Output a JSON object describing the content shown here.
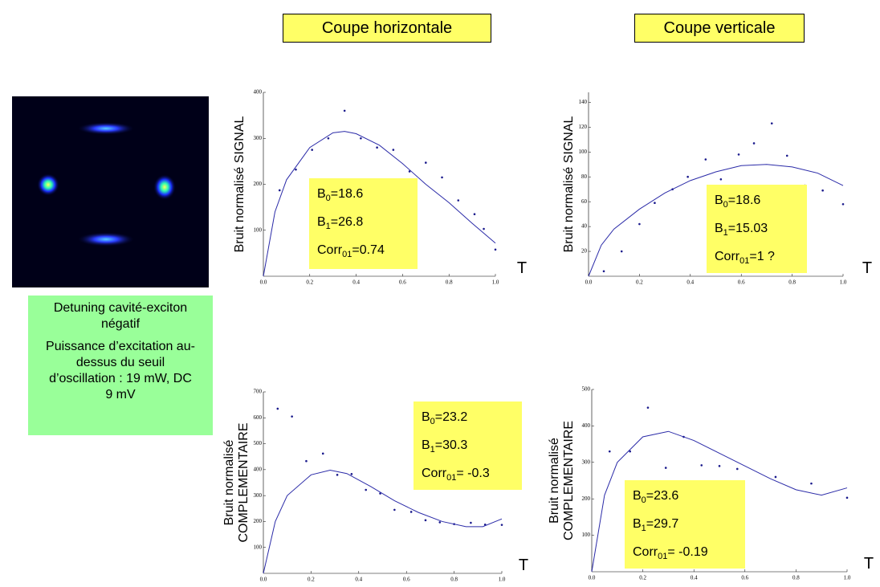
{
  "headers": [
    "Coupe horizontale",
    "Coupe verticale"
  ],
  "caption": {
    "paragraphs": [
      "Detuning cavité-exciton négatif",
      "Puissance d’excitation au-dessus du seuil d’oscillation : 19 mW, DC 9 mV"
    ]
  },
  "chart_data": [
    {
      "type": "scatter",
      "y_label": [
        "Bruit normalisé SIGNAL"
      ],
      "x_label": "T",
      "xlim": [
        0,
        1
      ],
      "ylim": [
        0,
        400
      ],
      "xticks": [
        {
          "value": 0,
          "label": "0.0"
        },
        {
          "value": 0.2,
          "label": "0.2"
        },
        {
          "value": 0.4,
          "label": "0.4"
        },
        {
          "value": 0.6,
          "label": "0.6"
        },
        {
          "value": 0.8,
          "label": "0.8"
        },
        {
          "value": 1,
          "label": "1.0"
        }
      ],
      "yticks": [
        100,
        200,
        300,
        400
      ],
      "series": [
        {
          "color": "#1a1a8c",
          "x": [
            0.07,
            0.14,
            0.21,
            0.28,
            0.35,
            0.42,
            0.49,
            0.56,
            0.63,
            0.7,
            0.77,
            0.84,
            0.91,
            0.95,
            1.0
          ],
          "values": [
            187,
            232,
            275,
            300,
            360,
            300,
            280,
            275,
            228,
            247,
            215,
            165,
            135,
            103,
            58
          ]
        },
        {
          "style": "line",
          "color": "#2b2ba8",
          "x": [
            0,
            0.05,
            0.1,
            0.2,
            0.3,
            0.35,
            0.4,
            0.5,
            0.6,
            0.7,
            0.8,
            0.9,
            1.0
          ],
          "values": [
            0,
            140,
            210,
            280,
            312,
            315,
            310,
            285,
            245,
            200,
            160,
            115,
            72
          ]
        }
      ],
      "annotations": [
        {
          "symbol": "B",
          "subscript": "0",
          "text": "=18.6"
        },
        {
          "symbol": "B",
          "subscript": "1",
          "text": "=26.8"
        },
        {
          "symbol": "Corr",
          "subscript": "01",
          "text": "=0.74"
        }
      ]
    },
    {
      "type": "scatter",
      "y_label": [
        "Bruit normalisé SIGNAL"
      ],
      "x_label": "T",
      "xlim": [
        0,
        1
      ],
      "ylim": [
        0,
        148
      ],
      "xticks": [
        {
          "value": 0,
          "label": "0.0"
        },
        {
          "value": 0.2,
          "label": "0.2"
        },
        {
          "value": 0.4,
          "label": "0.4"
        },
        {
          "value": 0.6,
          "label": "0.6"
        },
        {
          "value": 0.8,
          "label": "0.8"
        },
        {
          "value": 1,
          "label": "1.0"
        }
      ],
      "yticks": [
        20,
        40,
        60,
        80,
        100,
        120,
        140
      ],
      "series": [
        {
          "color": "#1a1a8c",
          "x": [
            0.06,
            0.13,
            0.2,
            0.26,
            0.33,
            0.39,
            0.46,
            0.52,
            0.59,
            0.65,
            0.72,
            0.78,
            0.85,
            0.92,
            1.0
          ],
          "values": [
            4,
            20,
            42,
            59,
            70,
            80,
            94,
            78,
            98,
            107,
            123,
            97,
            73,
            69,
            58
          ]
        },
        {
          "style": "line",
          "color": "#2b2ba8",
          "x": [
            0,
            0.05,
            0.1,
            0.2,
            0.3,
            0.4,
            0.5,
            0.6,
            0.7,
            0.8,
            0.9,
            1.0
          ],
          "values": [
            0,
            25,
            38,
            54,
            67,
            77,
            84,
            89,
            90,
            88,
            83,
            73
          ]
        }
      ],
      "annotations": [
        {
          "symbol": "B",
          "subscript": "0",
          "text": "=18.6"
        },
        {
          "symbol": "B",
          "subscript": "1",
          "text": "=15.03"
        },
        {
          "symbol": "Corr",
          "subscript": "01",
          "text": "=1 ?"
        }
      ]
    },
    {
      "type": "scatter",
      "y_label": [
        "Bruit normalisé",
        "COMPLEMENTAIRE"
      ],
      "x_label": "T",
      "xlim": [
        0,
        1
      ],
      "ylim": [
        0,
        700
      ],
      "xticks": [
        {
          "value": 0,
          "label": "0.0"
        },
        {
          "value": 0.2,
          "label": "0.2"
        },
        {
          "value": 0.4,
          "label": "0.4"
        },
        {
          "value": 0.6,
          "label": "0.6"
        },
        {
          "value": 0.8,
          "label": "0.8"
        },
        {
          "value": 1,
          "label": "1.0"
        }
      ],
      "yticks": [
        100,
        200,
        300,
        400,
        500,
        600,
        700
      ],
      "series": [
        {
          "color": "#1a1a8c",
          "x": [
            0.06,
            0.12,
            0.18,
            0.25,
            0.31,
            0.37,
            0.43,
            0.49,
            0.55,
            0.62,
            0.68,
            0.74,
            0.8,
            0.87,
            0.93,
            1.0
          ],
          "values": [
            635,
            605,
            433,
            462,
            380,
            383,
            322,
            308,
            245,
            237,
            205,
            197,
            190,
            195,
            188,
            187
          ]
        },
        {
          "style": "line",
          "color": "#2b2ba8",
          "x": [
            0,
            0.05,
            0.1,
            0.2,
            0.28,
            0.35,
            0.45,
            0.55,
            0.65,
            0.75,
            0.85,
            0.92,
            1.0
          ],
          "values": [
            0,
            200,
            300,
            380,
            398,
            385,
            335,
            280,
            235,
            200,
            180,
            180,
            210
          ]
        }
      ],
      "annotations": [
        {
          "symbol": "B",
          "subscript": "0",
          "text": "=23.2"
        },
        {
          "symbol": "B",
          "subscript": "1",
          "text": "=30.3"
        },
        {
          "symbol": "Corr",
          "subscript": "01",
          "text": "= -0.3"
        }
      ]
    },
    {
      "type": "scatter",
      "y_label": [
        "Bruit normalisé",
        "COMPLEMENTAIRE"
      ],
      "x_label": "T",
      "xlim": [
        0,
        1
      ],
      "ylim": [
        0,
        500
      ],
      "xticks": [
        {
          "value": 0,
          "label": "0.0"
        },
        {
          "value": 0.2,
          "label": "0.2"
        },
        {
          "value": 0.4,
          "label": "0.4"
        },
        {
          "value": 0.6,
          "label": "0.6"
        },
        {
          "value": 0.8,
          "label": "0.8"
        },
        {
          "value": 1,
          "label": "1.0"
        }
      ],
      "yticks": [
        100,
        200,
        300,
        400,
        500
      ],
      "series": [
        {
          "color": "#1a1a8c",
          "x": [
            0.07,
            0.15,
            0.22,
            0.29,
            0.36,
            0.43,
            0.5,
            0.57,
            0.72,
            0.86,
            1.0
          ],
          "values": [
            330,
            330,
            450,
            285,
            370,
            292,
            290,
            282,
            260,
            242,
            203
          ]
        },
        {
          "style": "line",
          "color": "#2b2ba8",
          "x": [
            0,
            0.05,
            0.1,
            0.2,
            0.3,
            0.4,
            0.5,
            0.6,
            0.7,
            0.8,
            0.9,
            1.0
          ],
          "values": [
            0,
            210,
            300,
            370,
            385,
            360,
            325,
            290,
            255,
            225,
            210,
            230
          ]
        }
      ],
      "annotations": [
        {
          "symbol": "B",
          "subscript": "0",
          "text": "=23.6"
        },
        {
          "symbol": "B",
          "subscript": "1",
          "text": "=29.7"
        },
        {
          "symbol": "Corr",
          "subscript": "01",
          "text": "= -0.19"
        }
      ]
    }
  ]
}
